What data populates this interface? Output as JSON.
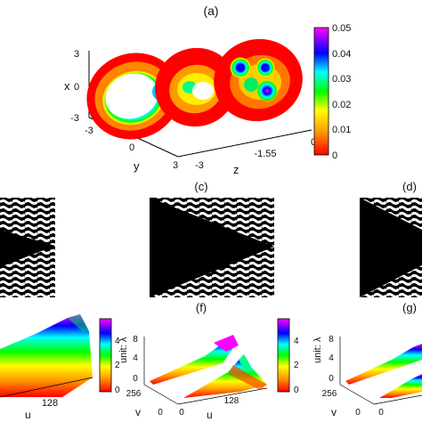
{
  "panels": {
    "a": "(a)",
    "c": "(c)",
    "d": "(d)",
    "f": "(f)",
    "g": "(g)"
  },
  "panel_a": {
    "axis_x": "x",
    "axis_y": "y",
    "axis_z": "z",
    "x_ticks": [
      "3",
      "0",
      "-3"
    ],
    "y_ticks": [
      "-3",
      "0",
      "3"
    ],
    "z_ticks": [
      "-3",
      "-1.55",
      "0"
    ],
    "colorbar_ticks": [
      "0.05",
      "0.04",
      "0.03",
      "0.02",
      "0.01",
      "0"
    ]
  },
  "panel_e": {
    "x_ticks": [
      "128"
    ],
    "x_label": "u",
    "colorbar_ticks": [
      "4",
      "2",
      "0"
    ]
  },
  "panel_f": {
    "z_label": "unit: λ",
    "z_ticks": [
      "8",
      "4",
      "0"
    ],
    "v_tick": "256",
    "v_label": "v",
    "u_ticks": [
      "0",
      "0",
      "128"
    ],
    "u_label": "u",
    "colorbar_ticks": [
      "4",
      "2",
      "0"
    ]
  },
  "panel_g": {
    "z_label": "unit: λ",
    "z_ticks": [
      "8",
      "4",
      "0"
    ],
    "v_tick": "256",
    "v_label": "v",
    "u_ticks": [
      "0",
      "0"
    ]
  },
  "colors": {
    "jet": [
      "#ff0000",
      "#ff8000",
      "#ffff00",
      "#00ff00",
      "#00ffff",
      "#0000ff",
      "#ff00ff"
    ]
  }
}
